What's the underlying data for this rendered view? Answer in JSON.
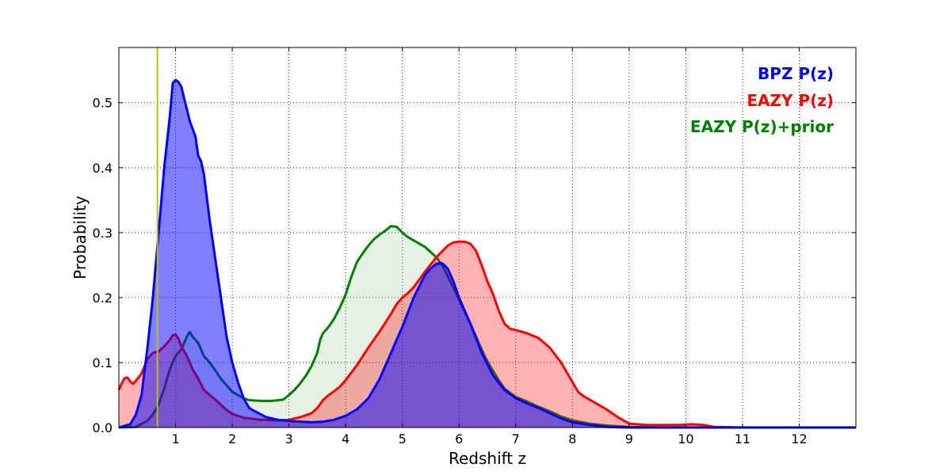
{
  "chart_data": {
    "type": "area",
    "title": "",
    "xlabel": "Redshift z",
    "ylabel": "Probability",
    "xlim": [
      0,
      13
    ],
    "ylim": [
      0,
      0.585
    ],
    "grid": true,
    "legend_position": "top-right",
    "x_ticks": [
      1,
      2,
      3,
      4,
      5,
      6,
      7,
      8,
      9,
      10,
      11,
      12
    ],
    "x_tick_labels": [
      "1",
      "2",
      "3",
      "4",
      "5",
      "6",
      "7",
      "8",
      "9",
      "10",
      "11",
      "12"
    ],
    "y_ticks": [
      0.0,
      0.1,
      0.2,
      0.3,
      0.4,
      0.5
    ],
    "y_tick_labels": [
      "0.0",
      "0.1",
      "0.2",
      "0.3",
      "0.4",
      "0.5"
    ],
    "reference_line": {
      "x": 0.68,
      "color": "#bfbf00"
    },
    "series": [
      {
        "name": "EAZY P(z)+prior",
        "legend_label": "EAZY P(z)+prior",
        "color": "#008000",
        "fill_color": "#008000",
        "fill_opacity": 0.1,
        "points": [
          [
            0,
            0
          ],
          [
            0.3,
            0.001
          ],
          [
            0.5,
            0.01
          ],
          [
            0.6,
            0.02
          ],
          [
            0.7,
            0.035
          ],
          [
            0.8,
            0.06
          ],
          [
            0.9,
            0.09
          ],
          [
            1.0,
            0.11
          ],
          [
            1.1,
            0.12
          ],
          [
            1.2,
            0.14
          ],
          [
            1.25,
            0.147
          ],
          [
            1.3,
            0.14
          ],
          [
            1.4,
            0.13
          ],
          [
            1.5,
            0.11
          ],
          [
            1.6,
            0.1
          ],
          [
            1.7,
            0.088
          ],
          [
            1.8,
            0.075
          ],
          [
            1.9,
            0.065
          ],
          [
            2.0,
            0.055
          ],
          [
            2.1,
            0.05
          ],
          [
            2.2,
            0.045
          ],
          [
            2.3,
            0.042
          ],
          [
            2.5,
            0.041
          ],
          [
            2.7,
            0.041
          ],
          [
            2.9,
            0.043
          ],
          [
            3.0,
            0.05
          ],
          [
            3.1,
            0.058
          ],
          [
            3.2,
            0.068
          ],
          [
            3.3,
            0.08
          ],
          [
            3.4,
            0.095
          ],
          [
            3.5,
            0.115
          ],
          [
            3.55,
            0.135
          ],
          [
            3.6,
            0.145
          ],
          [
            3.7,
            0.155
          ],
          [
            3.8,
            0.168
          ],
          [
            3.9,
            0.185
          ],
          [
            4.0,
            0.205
          ],
          [
            4.1,
            0.232
          ],
          [
            4.2,
            0.255
          ],
          [
            4.3,
            0.268
          ],
          [
            4.4,
            0.28
          ],
          [
            4.5,
            0.29
          ],
          [
            4.6,
            0.297
          ],
          [
            4.7,
            0.303
          ],
          [
            4.8,
            0.31
          ],
          [
            4.9,
            0.309
          ],
          [
            5.0,
            0.3
          ],
          [
            5.1,
            0.293
          ],
          [
            5.2,
            0.288
          ],
          [
            5.3,
            0.283
          ],
          [
            5.4,
            0.278
          ],
          [
            5.5,
            0.27
          ],
          [
            5.6,
            0.262
          ],
          [
            5.7,
            0.25
          ],
          [
            5.8,
            0.233
          ],
          [
            5.9,
            0.215
          ],
          [
            6.0,
            0.197
          ],
          [
            6.1,
            0.178
          ],
          [
            6.2,
            0.16
          ],
          [
            6.3,
            0.14
          ],
          [
            6.4,
            0.12
          ],
          [
            6.5,
            0.102
          ],
          [
            6.6,
            0.087
          ],
          [
            6.7,
            0.073
          ],
          [
            6.8,
            0.06
          ],
          [
            7.0,
            0.047
          ],
          [
            7.2,
            0.04
          ],
          [
            7.4,
            0.032
          ],
          [
            7.6,
            0.025
          ],
          [
            7.8,
            0.017
          ],
          [
            8.0,
            0.011
          ],
          [
            8.3,
            0.006
          ],
          [
            8.6,
            0.003
          ],
          [
            9.0,
            0.001
          ],
          [
            9.5,
            0
          ],
          [
            13,
            0
          ]
        ]
      },
      {
        "name": "EAZY P(z)",
        "legend_label": "EAZY P(z)",
        "color": "#ff0000",
        "fill_color": "#ff0000",
        "fill_opacity": 0.3,
        "points": [
          [
            0,
            0.058
          ],
          [
            0.05,
            0.068
          ],
          [
            0.1,
            0.076
          ],
          [
            0.15,
            0.077
          ],
          [
            0.2,
            0.071
          ],
          [
            0.25,
            0.067
          ],
          [
            0.3,
            0.072
          ],
          [
            0.4,
            0.083
          ],
          [
            0.5,
            0.105
          ],
          [
            0.6,
            0.115
          ],
          [
            0.7,
            0.117
          ],
          [
            0.8,
            0.125
          ],
          [
            0.9,
            0.135
          ],
          [
            0.95,
            0.142
          ],
          [
            1.0,
            0.143
          ],
          [
            1.05,
            0.137
          ],
          [
            1.1,
            0.125
          ],
          [
            1.2,
            0.11
          ],
          [
            1.3,
            0.09
          ],
          [
            1.4,
            0.075
          ],
          [
            1.5,
            0.058
          ],
          [
            1.6,
            0.05
          ],
          [
            1.7,
            0.043
          ],
          [
            1.8,
            0.035
          ],
          [
            1.9,
            0.027
          ],
          [
            2.0,
            0.021
          ],
          [
            2.2,
            0.015
          ],
          [
            2.5,
            0.012
          ],
          [
            2.8,
            0.011
          ],
          [
            3.0,
            0.012
          ],
          [
            3.2,
            0.016
          ],
          [
            3.4,
            0.022
          ],
          [
            3.5,
            0.03
          ],
          [
            3.6,
            0.042
          ],
          [
            3.7,
            0.05
          ],
          [
            3.8,
            0.056
          ],
          [
            3.9,
            0.063
          ],
          [
            4.0,
            0.073
          ],
          [
            4.2,
            0.096
          ],
          [
            4.4,
            0.123
          ],
          [
            4.6,
            0.148
          ],
          [
            4.8,
            0.175
          ],
          [
            4.9,
            0.19
          ],
          [
            5.0,
            0.2
          ],
          [
            5.1,
            0.207
          ],
          [
            5.2,
            0.216
          ],
          [
            5.4,
            0.24
          ],
          [
            5.6,
            0.262
          ],
          [
            5.8,
            0.28
          ],
          [
            5.9,
            0.285
          ],
          [
            6.0,
            0.286
          ],
          [
            6.1,
            0.286
          ],
          [
            6.2,
            0.283
          ],
          [
            6.3,
            0.272
          ],
          [
            6.4,
            0.25
          ],
          [
            6.5,
            0.225
          ],
          [
            6.6,
            0.205
          ],
          [
            6.7,
            0.18
          ],
          [
            6.8,
            0.16
          ],
          [
            6.9,
            0.152
          ],
          [
            7.0,
            0.15
          ],
          [
            7.2,
            0.145
          ],
          [
            7.4,
            0.138
          ],
          [
            7.6,
            0.123
          ],
          [
            7.8,
            0.1
          ],
          [
            8.0,
            0.07
          ],
          [
            8.1,
            0.055
          ],
          [
            8.2,
            0.048
          ],
          [
            8.4,
            0.038
          ],
          [
            8.6,
            0.028
          ],
          [
            8.8,
            0.016
          ],
          [
            9.0,
            0.006
          ],
          [
            9.3,
            0.004
          ],
          [
            9.6,
            0.004
          ],
          [
            9.9,
            0.004
          ],
          [
            10.1,
            0.005
          ],
          [
            10.3,
            0.004
          ],
          [
            10.5,
            0.001
          ],
          [
            11,
            0
          ],
          [
            13,
            0
          ]
        ]
      },
      {
        "name": "BPZ P(z)",
        "legend_label": "BPZ P(z)",
        "color": "#0000ff",
        "fill_color": "#0000ff",
        "fill_opacity": 0.5,
        "points": [
          [
            0,
            0
          ],
          [
            0.2,
            0.005
          ],
          [
            0.3,
            0.02
          ],
          [
            0.4,
            0.05
          ],
          [
            0.5,
            0.12
          ],
          [
            0.6,
            0.2
          ],
          [
            0.7,
            0.3
          ],
          [
            0.8,
            0.4
          ],
          [
            0.9,
            0.48
          ],
          [
            0.95,
            0.53
          ],
          [
            1.0,
            0.535
          ],
          [
            1.05,
            0.532
          ],
          [
            1.1,
            0.525
          ],
          [
            1.15,
            0.507
          ],
          [
            1.2,
            0.49
          ],
          [
            1.25,
            0.472
          ],
          [
            1.3,
            0.46
          ],
          [
            1.35,
            0.448
          ],
          [
            1.4,
            0.418
          ],
          [
            1.45,
            0.41
          ],
          [
            1.5,
            0.39
          ],
          [
            1.6,
            0.32
          ],
          [
            1.7,
            0.26
          ],
          [
            1.8,
            0.2
          ],
          [
            1.9,
            0.14
          ],
          [
            2.0,
            0.1
          ],
          [
            2.1,
            0.07
          ],
          [
            2.2,
            0.045
          ],
          [
            2.3,
            0.03
          ],
          [
            2.4,
            0.025
          ],
          [
            2.6,
            0.016
          ],
          [
            2.8,
            0.012
          ],
          [
            3.0,
            0.01
          ],
          [
            3.2,
            0.009
          ],
          [
            3.4,
            0.008
          ],
          [
            3.6,
            0.009
          ],
          [
            3.8,
            0.012
          ],
          [
            4.0,
            0.018
          ],
          [
            4.2,
            0.028
          ],
          [
            4.4,
            0.045
          ],
          [
            4.6,
            0.075
          ],
          [
            4.8,
            0.115
          ],
          [
            5.0,
            0.155
          ],
          [
            5.2,
            0.2
          ],
          [
            5.4,
            0.235
          ],
          [
            5.5,
            0.245
          ],
          [
            5.6,
            0.252
          ],
          [
            5.7,
            0.253
          ],
          [
            5.8,
            0.245
          ],
          [
            5.9,
            0.225
          ],
          [
            6.0,
            0.2
          ],
          [
            6.2,
            0.16
          ],
          [
            6.4,
            0.115
          ],
          [
            6.6,
            0.08
          ],
          [
            6.8,
            0.058
          ],
          [
            7.0,
            0.045
          ],
          [
            7.2,
            0.037
          ],
          [
            7.4,
            0.03
          ],
          [
            7.6,
            0.022
          ],
          [
            7.8,
            0.014
          ],
          [
            8.0,
            0.008
          ],
          [
            8.3,
            0.004
          ],
          [
            8.6,
            0.001
          ],
          [
            9.0,
            0
          ],
          [
            13,
            0
          ]
        ]
      }
    ]
  }
}
